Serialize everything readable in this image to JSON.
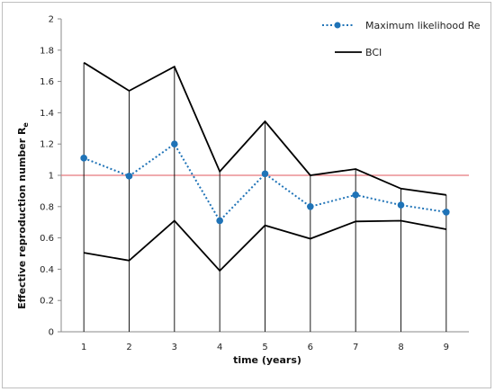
{
  "chart_data": {
    "type": "line",
    "xlabel": "time (years)",
    "ylabel": "Effective reproduction number R",
    "ylabel_sub": "e",
    "x": [
      1,
      2,
      3,
      4,
      5,
      6,
      7,
      8,
      9
    ],
    "xlim": [
      0.5,
      9.5
    ],
    "ylim": [
      0,
      2
    ],
    "yticks": [
      "0",
      "0.2",
      "0.4",
      "0.6",
      "0.8",
      "1",
      "1.2",
      "1.4",
      "1.6",
      "1.8",
      "2"
    ],
    "reference_line": {
      "y": 1,
      "color": "#e8797d"
    },
    "grid": false,
    "legend_position": "top-right",
    "series": [
      {
        "name": "Maximum likelihood Re",
        "style": "dotted-with-markers",
        "color": "#1f73b7",
        "values": [
          1.11,
          0.995,
          1.2,
          0.71,
          1.01,
          0.8,
          0.875,
          0.81,
          0.765
        ]
      },
      {
        "name": "BCI",
        "style": "solid",
        "color": "#000000",
        "upper": [
          1.72,
          1.54,
          1.695,
          1.025,
          1.345,
          1.0,
          1.04,
          0.915,
          0.875
        ],
        "lower": [
          0.505,
          0.455,
          0.71,
          0.39,
          0.68,
          0.595,
          0.705,
          0.71,
          0.655
        ]
      }
    ]
  }
}
